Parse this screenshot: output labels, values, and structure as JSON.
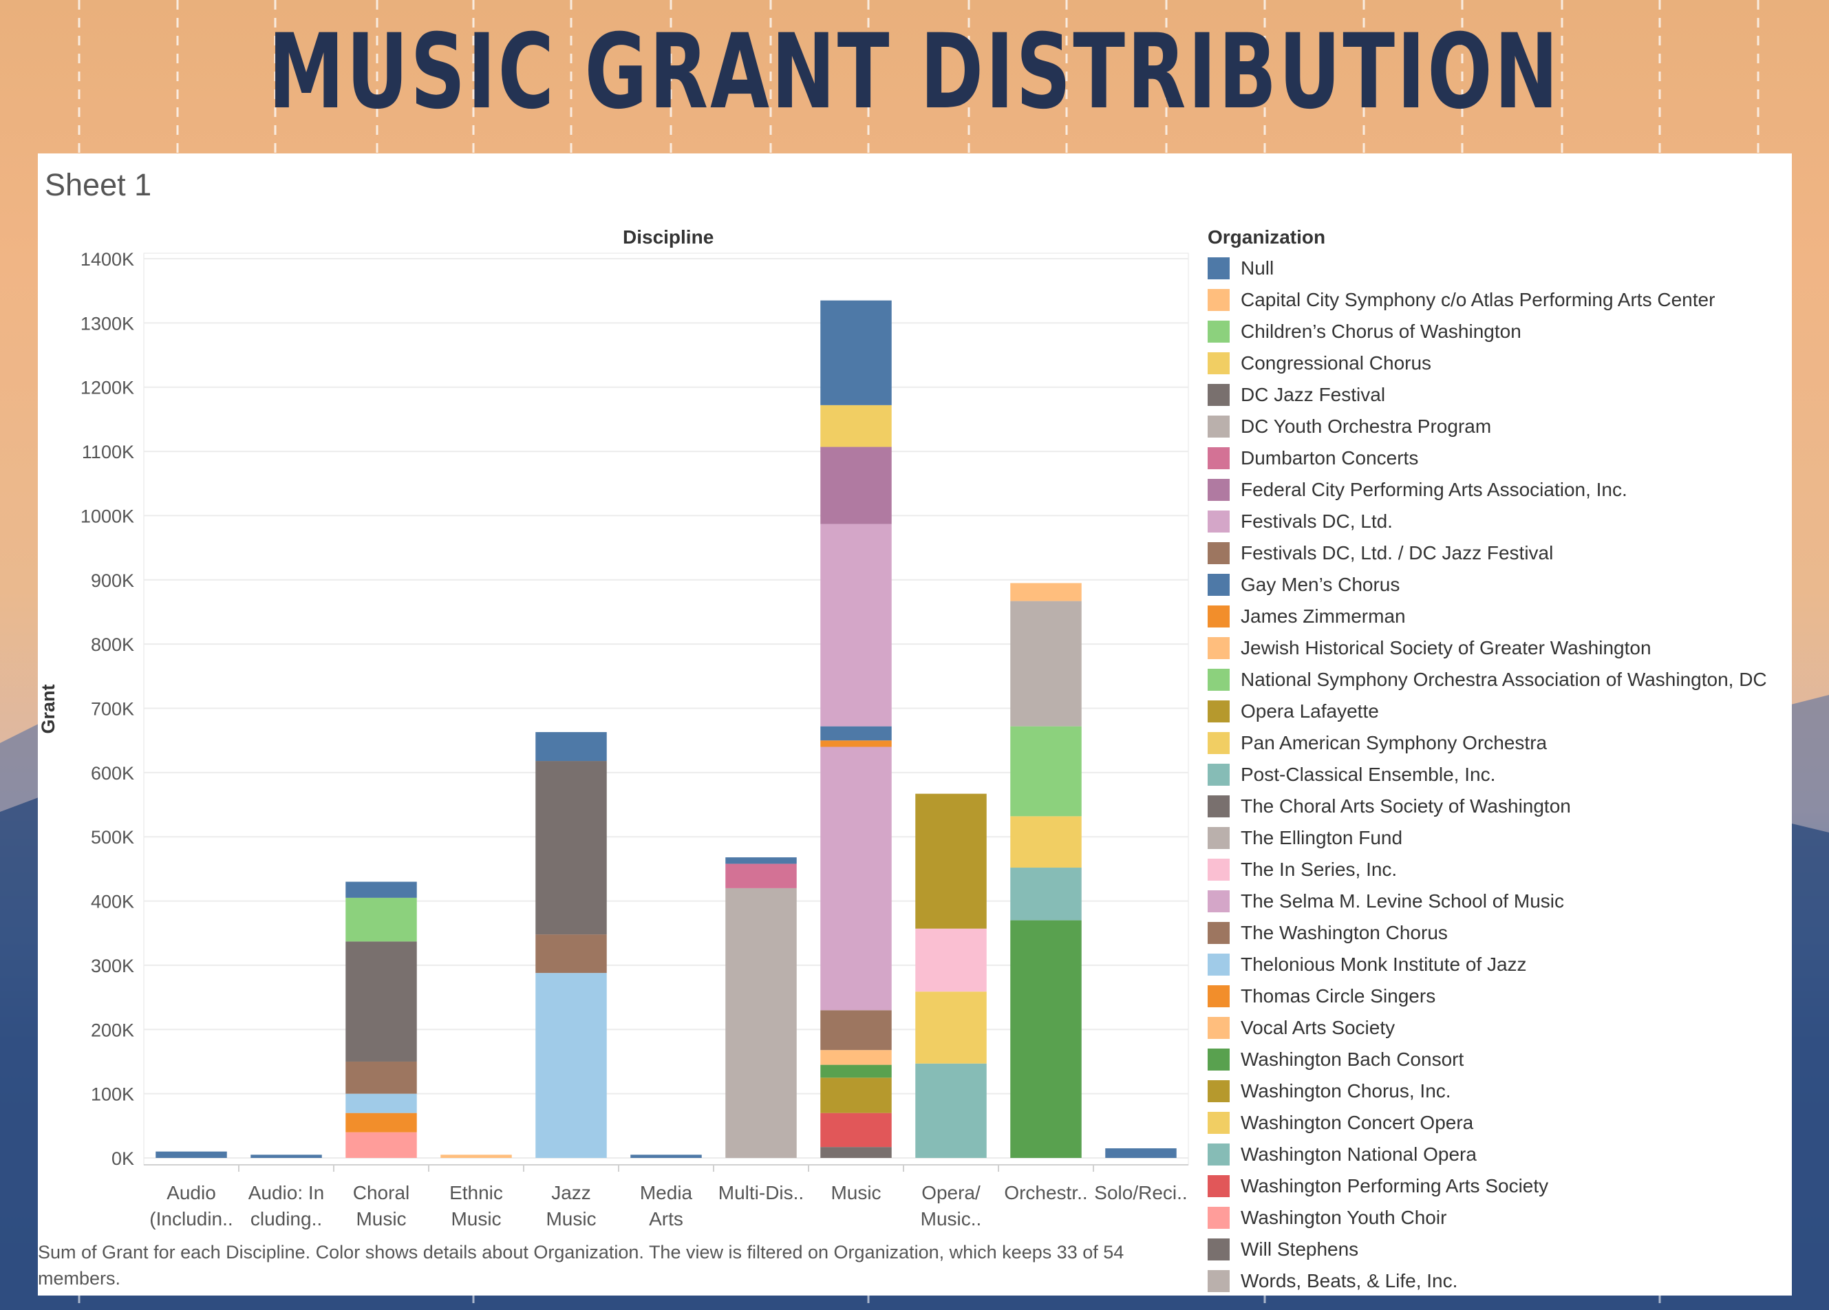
{
  "page_title": "MUSIC GRANT DISTRIBUTION",
  "sheet_title": "Sheet 1",
  "footnote": "Sum of Grant for each Discipline.  Color shows details about Organization. The view is filtered on Organization, which keeps 33 of 54 members.",
  "legend_title": "Organization",
  "colors": {
    "Null": "#4e79a7",
    "Capital City Symphony c/o Atlas Performing Arts Center": "#ffbe7d",
    "Children's Chorus of Washington": "#8cd17d",
    "Congressional Chorus": "#f1ce63",
    "DC Jazz Festival": "#79706e",
    "DC Youth Orchestra Program": "#bab0ac",
    "Dumbarton Concerts": "#d37295",
    "Federal City Performing Arts Association, Inc.": "#b07aa1",
    "Festivals DC, Ltd.": "#d4a6c8",
    "Festivals DC, Ltd. / DC Jazz Festival": "#9d7660",
    "Gay Men's Chorus": "#4e79a7",
    "James Zimmerman": "#f28e2b",
    "Jewish Historical Society of Greater Washington": "#ffbe7d",
    "National Symphony Orchestra Association of Washington, DC": "#8cd17d",
    "Opera Lafayette": "#b6992d",
    "Pan American Symphony Orchestra": "#f1ce63",
    "Post-Classical Ensemble, Inc.": "#86bcb6",
    "The Choral Arts Society of Washington": "#79706e",
    "The Ellington Fund": "#bab0ac",
    "The In Series, Inc.": "#fabfd2",
    "The Selma M. Levine School of Music": "#d4a6c8",
    "The Washington Chorus": "#9d7660",
    "Thelonious Monk Institute of Jazz": "#a0cbe8",
    "Thomas Circle Singers": "#f28e2b",
    "Vocal Arts Society": "#ffbe7d",
    "Washington Bach Consort": "#59a14f",
    "Washington Chorus, Inc.": "#b6992d",
    "Washington Concert Opera": "#f1ce63",
    "Washington National Opera": "#86bcb6",
    "Washington Performing Arts Society": "#e15759",
    "Washington Youth Choir": "#ff9d9a",
    "Will Stephens": "#79706e",
    "Words, Beats, & Life, Inc.": "#bab0ac"
  },
  "legend": [
    "Null",
    "Capital City Symphony c/o Atlas Performing Arts Center",
    "Children's Chorus of Washington",
    "Congressional Chorus",
    "DC Jazz Festival",
    "DC Youth Orchestra Program",
    "Dumbarton Concerts",
    "Federal City Performing Arts Association, Inc.",
    "Festivals DC, Ltd.",
    "Festivals DC, Ltd. / DC Jazz Festival",
    "Gay Men's Chorus",
    "James Zimmerman",
    "Jewish Historical Society of Greater Washington",
    "National Symphony Orchestra Association of Washington, DC",
    "Opera Lafayette",
    "Pan American Symphony Orchestra",
    "Post-Classical Ensemble, Inc.",
    "The Choral Arts Society of Washington",
    "The Ellington Fund",
    "The In Series, Inc.",
    "The Selma M. Levine School of Music",
    "The Washington Chorus",
    "Thelonious Monk Institute of Jazz",
    "Thomas Circle Singers",
    "Vocal Arts Society",
    "Washington Bach Consort",
    "Washington Chorus, Inc.",
    "Washington Concert Opera",
    "Washington National Opera",
    "Washington Performing Arts Society",
    "Washington Youth Choir",
    "Will Stephens",
    "Words, Beats, & Life, Inc."
  ],
  "chart_data": {
    "type": "bar",
    "stacked": true,
    "title": "Discipline",
    "xlabel": "Discipline",
    "ylabel": "Grant",
    "ylim": [
      0,
      1400
    ],
    "y_unit": "K",
    "y_ticks": [
      "0K",
      "100K",
      "200K",
      "300K",
      "400K",
      "500K",
      "600K",
      "700K",
      "800K",
      "900K",
      "1000K",
      "1100K",
      "1200K",
      "1300K",
      "1400K"
    ],
    "legend_position": "right",
    "categories": [
      {
        "label": [
          "Audio",
          "(Includin.."
        ],
        "stacks": [
          {
            "org": "Null",
            "value": 10
          }
        ]
      },
      {
        "label": [
          "Audio: In",
          "cluding.."
        ],
        "stacks": [
          {
            "org": "Null",
            "value": 5
          }
        ]
      },
      {
        "label": [
          "Choral",
          "Music"
        ],
        "stacks": [
          {
            "org": "Washington Youth Choir",
            "value": 40
          },
          {
            "org": "Thomas Circle Singers",
            "value": 30
          },
          {
            "org": "Thelonious Monk Institute of Jazz",
            "value": 30
          },
          {
            "org": "The Washington Chorus",
            "value": 50
          },
          {
            "org": "The Choral Arts Society of Washington",
            "value": 187
          },
          {
            "org": "Children's Chorus of Washington",
            "value": 68
          },
          {
            "org": "Gay Men's Chorus",
            "value": 25
          }
        ]
      },
      {
        "label": [
          "Ethnic",
          "Music"
        ],
        "stacks": [
          {
            "org": "Jewish Historical Society of Greater Washington",
            "value": 5
          }
        ]
      },
      {
        "label": [
          "Jazz",
          "Music"
        ],
        "stacks": [
          {
            "org": "Thelonious Monk Institute of Jazz",
            "value": 288
          },
          {
            "org": "Festivals DC, Ltd. / DC Jazz Festival",
            "value": 60
          },
          {
            "org": "DC Jazz Festival",
            "value": 270
          },
          {
            "org": "Null",
            "value": 45
          }
        ]
      },
      {
        "label": [
          "Media",
          "Arts"
        ],
        "stacks": [
          {
            "org": "Null",
            "value": 5
          }
        ]
      },
      {
        "label": [
          "Multi-Dis.."
        ],
        "stacks": [
          {
            "org": "Words, Beats, & Life, Inc.",
            "value": 420
          },
          {
            "org": "Dumbarton Concerts",
            "value": 38
          },
          {
            "org": "Null",
            "value": 10
          }
        ]
      },
      {
        "label": [
          "Music"
        ],
        "stacks": [
          {
            "org": "Will Stephens",
            "value": 17
          },
          {
            "org": "Washington Performing Arts Society",
            "value": 53
          },
          {
            "org": "Opera Lafayette",
            "value": 55
          },
          {
            "org": "Washington Bach Consort",
            "value": 20
          },
          {
            "org": "Vocal Arts Society",
            "value": 23
          },
          {
            "org": "The Washington Chorus",
            "value": 62
          },
          {
            "org": "The Selma M. Levine School of Music",
            "value": 410
          },
          {
            "org": "James Zimmerman",
            "value": 10
          },
          {
            "org": "Null",
            "value": 22
          },
          {
            "org": "Festivals DC, Ltd.",
            "value": 315
          },
          {
            "org": "Federal City Performing Arts Association, Inc.",
            "value": 120
          },
          {
            "org": "Congressional Chorus",
            "value": 65
          },
          {
            "org": "Gay Men's Chorus",
            "value": 163
          }
        ]
      },
      {
        "label": [
          "Opera/",
          "Music.."
        ],
        "stacks": [
          {
            "org": "Washington National Opera",
            "value": 147
          },
          {
            "org": "Washington Concert Opera",
            "value": 112
          },
          {
            "org": "The In Series, Inc.",
            "value": 98
          },
          {
            "org": "Washington Chorus, Inc.",
            "value": 210
          }
        ]
      },
      {
        "label": [
          "Orchestr.."
        ],
        "stacks": [
          {
            "org": "Washington Bach Consort",
            "value": 370
          },
          {
            "org": "Post-Classical Ensemble, Inc.",
            "value": 82
          },
          {
            "org": "Pan American Symphony Orchestra",
            "value": 80
          },
          {
            "org": "National Symphony Orchestra Association of Washington, DC",
            "value": 140
          },
          {
            "org": "DC Youth Orchestra Program",
            "value": 195
          },
          {
            "org": "Capital City Symphony c/o Atlas Performing Arts Center",
            "value": 28
          }
        ]
      },
      {
        "label": [
          "Solo/Reci.."
        ],
        "stacks": [
          {
            "org": "Null",
            "value": 15
          }
        ]
      }
    ]
  }
}
